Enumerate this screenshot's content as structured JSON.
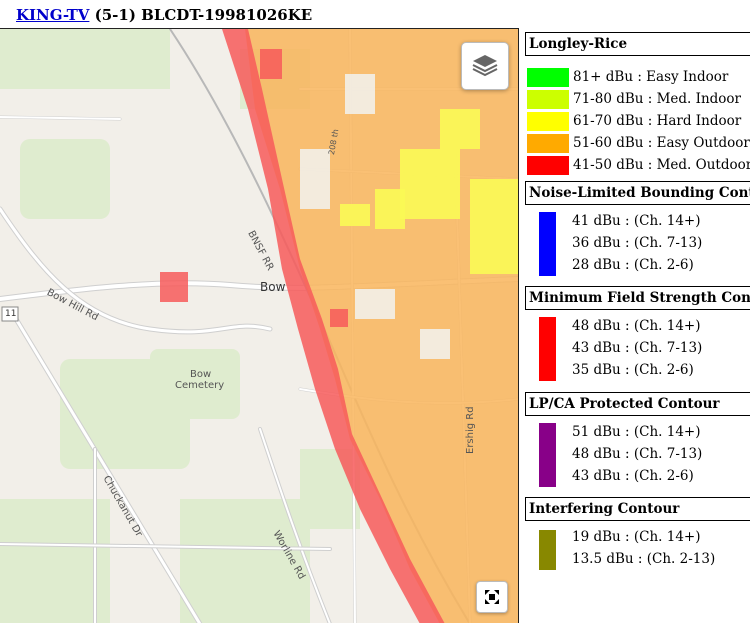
{
  "header": {
    "station_link": "KING-TV",
    "rest": " (5-1) BLCDT-19981026KE"
  },
  "map": {
    "labels": {
      "bow": "Bow",
      "bow_hill_rd": "Bow Hill Rd",
      "bnsf_rr": "BNSF RR",
      "bow_cemetery_1": "Bow",
      "bow_cemetery_2": "Cemetery",
      "chuckanut_dr": "Chuckanut Dr",
      "worline_rd": "Worline Rd",
      "ershig_rd": "Ershig Rd",
      "street_208": "208 th",
      "route_11": "11"
    },
    "controls": {
      "layers_icon": "layers-icon",
      "fullscreen_icon": "fullscreen-icon"
    },
    "colors": {
      "land": "#f2efe9",
      "park": "#dfeccf",
      "road": "#ffffff",
      "road_casing": "#cfcfcf",
      "coverage_orange": "#f9b55c",
      "coverage_red": "#f75a5a",
      "coverage_yellow": "#fafa55"
    }
  },
  "legend": {
    "longley": {
      "title": "Longley-Rice",
      "items": [
        {
          "label": "81+ dBu : Easy Indoor",
          "color": "#00ff00"
        },
        {
          "label": "71-80 dBu : Med. Indoor",
          "color": "#ccff00"
        },
        {
          "label": "61-70 dBu : Hard Indoor",
          "color": "#ffff00"
        },
        {
          "label": "51-60 dBu : Easy Outdoor",
          "color": "#ffaa00"
        },
        {
          "label": "41-50 dBu : Med. Outdoor",
          "color": "#ff0000"
        }
      ]
    },
    "noise": {
      "title": "Noise-Limited Bounding Contour",
      "color": "#0000ff",
      "items": [
        "41 dBu : (Ch. 14+)",
        "36 dBu : (Ch. 7-13)",
        "28 dBu : (Ch. 2-6)"
      ]
    },
    "minimum": {
      "title": "Minimum Field Strength Contour",
      "color": "#ff0000",
      "items": [
        "48 dBu : (Ch. 14+)",
        "43 dBu : (Ch. 7-13)",
        "35 dBu : (Ch. 2-6)"
      ]
    },
    "lpca": {
      "title": "LP/CA Protected Contour",
      "color": "#880088",
      "items": [
        "51 dBu : (Ch. 14+)",
        "48 dBu : (Ch. 7-13)",
        "43 dBu : (Ch. 2-6)"
      ]
    },
    "interfering": {
      "title": "Interfering Contour",
      "color": "#888800",
      "items": [
        "19 dBu : (Ch. 14+)",
        "13.5 dBu : (Ch. 2-13)"
      ]
    }
  }
}
